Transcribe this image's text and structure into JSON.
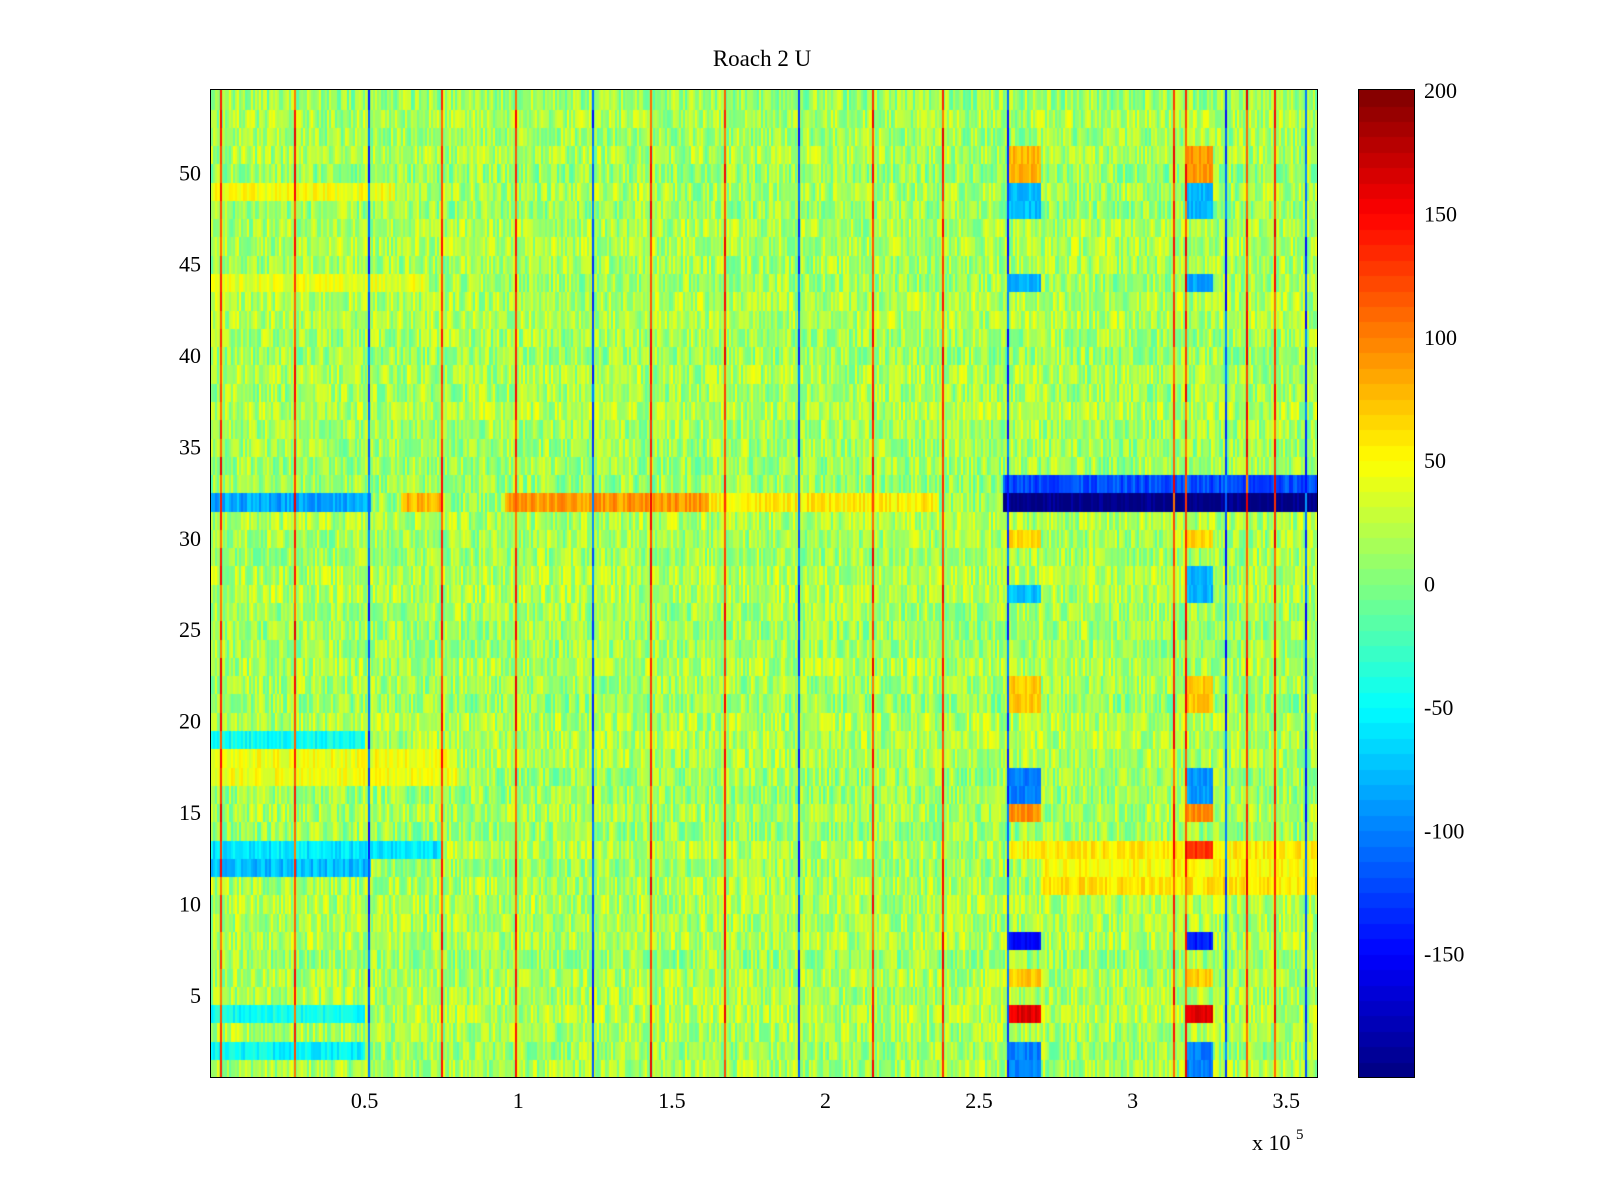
{
  "chart_data": {
    "type": "heatmap",
    "title": "Roach 2 U",
    "xlabel": "",
    "ylabel": "",
    "x_multiplier_label": "x 10",
    "x_multiplier_exponent": "5",
    "xlim": [
      0,
      3.6
    ],
    "ylim": [
      0.5,
      54.5
    ],
    "x_ticks": [
      0.5,
      1,
      1.5,
      2,
      2.5,
      3,
      3.5
    ],
    "x_tick_labels": [
      "0.5",
      "1",
      "1.5",
      "2",
      "2.5",
      "3",
      "3.5"
    ],
    "y_ticks": [
      5,
      10,
      15,
      20,
      25,
      30,
      35,
      40,
      45,
      50
    ],
    "y_tick_labels": [
      "5",
      "10",
      "15",
      "20",
      "25",
      "30",
      "35",
      "40",
      "45",
      "50"
    ],
    "rows": 54,
    "colormap": "jet",
    "clim": [
      -200,
      200
    ],
    "colorbar": {
      "ticks": [
        200,
        150,
        100,
        50,
        0,
        -50,
        -100,
        -150
      ],
      "tick_labels": [
        "200",
        "150",
        "100",
        "50",
        "0",
        "-50",
        "-100",
        "-150"
      ]
    },
    "background_mean": 15,
    "row_features": [
      {
        "row": 32,
        "x_from": 0.0,
        "x_to": 0.52,
        "value": -85
      },
      {
        "row": 32,
        "x_from": 0.62,
        "x_to": 0.75,
        "value": 80
      },
      {
        "row": 32,
        "x_from": 0.96,
        "x_to": 1.62,
        "value": 90
      },
      {
        "row": 32,
        "x_from": 1.62,
        "x_to": 2.36,
        "value": 55
      },
      {
        "row": 32,
        "x_from": 2.58,
        "x_to": 3.6,
        "value": -200
      },
      {
        "row": 33,
        "x_from": 2.58,
        "x_to": 3.6,
        "value": -120
      },
      {
        "row": 12,
        "x_from": 0.0,
        "x_to": 0.52,
        "value": -75
      },
      {
        "row": 13,
        "x_from": 0.0,
        "x_to": 0.75,
        "value": -60
      },
      {
        "row": 19,
        "x_from": 0.0,
        "x_to": 0.5,
        "value": -45
      },
      {
        "row": 4,
        "x_from": 0.0,
        "x_to": 0.5,
        "value": -45
      },
      {
        "row": 2,
        "x_from": 0.0,
        "x_to": 0.5,
        "value": -50
      },
      {
        "row": 17,
        "x_from": 0.0,
        "x_to": 0.8,
        "value": 45
      },
      {
        "row": 18,
        "x_from": 0.0,
        "x_to": 0.8,
        "value": 45
      },
      {
        "row": 49,
        "x_from": 0.0,
        "x_to": 0.6,
        "value": 45
      },
      {
        "row": 44,
        "x_from": 0.0,
        "x_to": 0.7,
        "value": 40
      },
      {
        "row": 11,
        "x_from": 2.7,
        "x_to": 3.6,
        "value": 60
      },
      {
        "row": 12,
        "x_from": 2.7,
        "x_to": 3.6,
        "value": 50
      },
      {
        "row": 13,
        "x_from": 2.6,
        "x_to": 3.6,
        "value": 55
      }
    ],
    "column_features": [
      {
        "x_from": 2.6,
        "x_to": 2.7,
        "rows": [
          1,
          2
        ],
        "value": -100
      },
      {
        "x_from": 2.6,
        "x_to": 2.7,
        "rows": [
          4
        ],
        "value": 160
      },
      {
        "x_from": 2.6,
        "x_to": 2.7,
        "rows": [
          6
        ],
        "value": 70
      },
      {
        "x_from": 2.6,
        "x_to": 2.7,
        "rows": [
          8
        ],
        "value": -150
      },
      {
        "x_from": 2.6,
        "x_to": 2.7,
        "rows": [
          15
        ],
        "value": 95
      },
      {
        "x_from": 2.6,
        "x_to": 2.7,
        "rows": [
          16,
          17
        ],
        "value": -100
      },
      {
        "x_from": 2.6,
        "x_to": 2.7,
        "rows": [
          21,
          22
        ],
        "value": 70
      },
      {
        "x_from": 2.6,
        "x_to": 2.7,
        "rows": [
          27
        ],
        "value": -75
      },
      {
        "x_from": 2.6,
        "x_to": 2.7,
        "rows": [
          30
        ],
        "value": 65
      },
      {
        "x_from": 2.6,
        "x_to": 2.7,
        "rows": [
          44
        ],
        "value": -80
      },
      {
        "x_from": 2.6,
        "x_to": 2.7,
        "rows": [
          48,
          49
        ],
        "value": -75
      },
      {
        "x_from": 2.6,
        "x_to": 2.7,
        "rows": [
          50,
          51
        ],
        "value": 80
      },
      {
        "x_from": 3.17,
        "x_to": 3.26,
        "rows": [
          1,
          2
        ],
        "value": -100
      },
      {
        "x_from": 3.17,
        "x_to": 3.26,
        "rows": [
          4
        ],
        "value": 160
      },
      {
        "x_from": 3.17,
        "x_to": 3.26,
        "rows": [
          6
        ],
        "value": 70
      },
      {
        "x_from": 3.17,
        "x_to": 3.26,
        "rows": [
          8
        ],
        "value": -140
      },
      {
        "x_from": 3.17,
        "x_to": 3.26,
        "rows": [
          13
        ],
        "value": 130
      },
      {
        "x_from": 3.17,
        "x_to": 3.26,
        "rows": [
          15
        ],
        "value": 95
      },
      {
        "x_from": 3.17,
        "x_to": 3.26,
        "rows": [
          16,
          17
        ],
        "value": -90
      },
      {
        "x_from": 3.17,
        "x_to": 3.26,
        "rows": [
          21,
          22
        ],
        "value": 70
      },
      {
        "x_from": 3.17,
        "x_to": 3.26,
        "rows": [
          27,
          28
        ],
        "value": -80
      },
      {
        "x_from": 3.17,
        "x_to": 3.26,
        "rows": [
          30
        ],
        "value": 65
      },
      {
        "x_from": 3.17,
        "x_to": 3.26,
        "rows": [
          44
        ],
        "value": -85
      },
      {
        "x_from": 3.17,
        "x_to": 3.26,
        "rows": [
          48,
          49
        ],
        "value": -80
      },
      {
        "x_from": 3.17,
        "x_to": 3.26,
        "rows": [
          50,
          51
        ],
        "value": 90
      }
    ],
    "vertical_spikes_x": [
      0.03,
      0.27,
      0.51,
      0.75,
      0.99,
      1.24,
      1.43,
      1.67,
      1.91,
      2.15,
      2.38,
      2.59,
      3.13,
      3.17,
      3.3,
      3.37,
      3.46,
      3.56
    ]
  }
}
